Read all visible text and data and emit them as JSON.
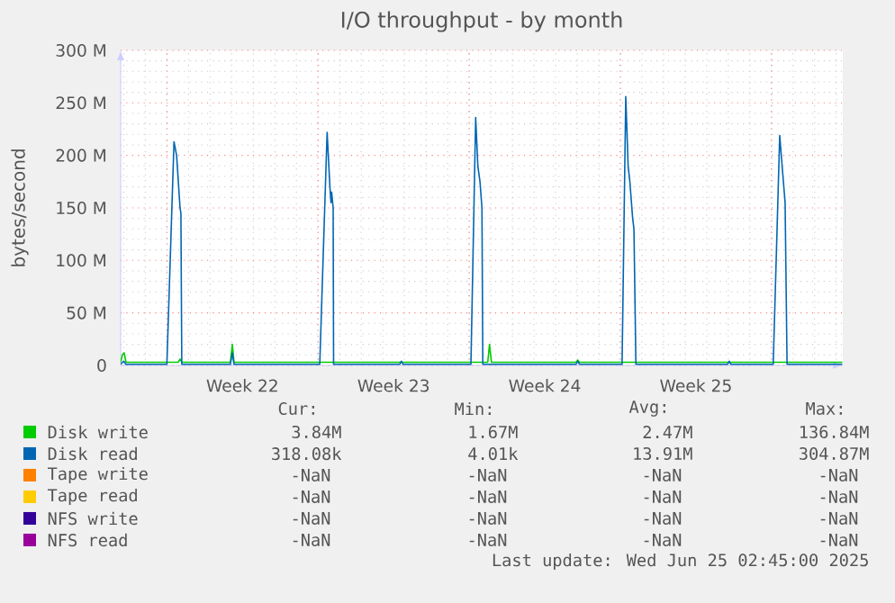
{
  "chart_data": {
    "type": "line",
    "title": "I/O throughput - by month",
    "ylabel": "bytes/second",
    "xlim": [
      "2025-05-23T20:38",
      "2025-06-26T07:12"
    ],
    "xticks": [
      {
        "value": "2025-05-26",
        "label": null
      },
      {
        "value": "2025-05-29T12:00",
        "label": "Week 22"
      },
      {
        "value": "2025-06-02",
        "label": null
      },
      {
        "value": "2025-06-05T12:00",
        "label": "Week 23"
      },
      {
        "value": "2025-06-09",
        "label": null
      },
      {
        "value": "2025-06-12T12:00",
        "label": "Week 24"
      },
      {
        "value": "2025-06-16",
        "label": null
      },
      {
        "value": "2025-06-19T12:00",
        "label": "Week 25"
      },
      {
        "value": "2025-06-23",
        "label": null
      }
    ],
    "ylim": [
      0,
      300000000
    ],
    "yticks": [
      {
        "value": 0,
        "label": "0"
      },
      {
        "value": 50000000,
        "label": "50 M"
      },
      {
        "value": 100000000,
        "label": "100 M"
      },
      {
        "value": 150000000,
        "label": "150 M"
      },
      {
        "value": 200000000,
        "label": "200 M"
      },
      {
        "value": 250000000,
        "label": "250 M"
      },
      {
        "value": 300000000,
        "label": "300 M"
      }
    ],
    "grid": true,
    "legend": "bottom",
    "series": [
      {
        "name": "Disk write",
        "color": "#00cc00",
        "x": [
          "2025-05-23T20:38",
          "2025-05-23T22:34",
          "2025-05-24T00:29",
          "2025-05-24T02:38",
          "2025-05-26T12:43",
          "2025-05-26T14:38",
          "2025-05-26T16:34",
          "2025-05-28T22:34",
          "2025-05-29T00:43",
          "2025-05-29T02:38",
          "2025-06-09T20:38",
          "2025-06-09T22:34",
          "2025-06-10T00:43",
          "2025-06-13T22:34",
          "2025-06-14T00:43",
          "2025-06-14T02:38",
          "2025-06-26T06:43"
        ],
        "values": [
          3000000,
          10000000,
          12000000,
          3000000,
          3000000,
          6000000,
          3000000,
          3000000,
          20000000,
          3000000,
          3000000,
          20000000,
          3000000,
          3000000,
          5000000,
          3000000,
          3000000
        ]
      },
      {
        "name": "Disk read",
        "color": "#0066b3",
        "x": [
          "2025-05-23T20:38",
          "2025-05-24T00:00",
          "2025-05-24T02:24",
          "2025-05-26T00:00",
          "2025-05-26T07:55",
          "2025-05-26T10:48",
          "2025-05-26T14:38",
          "2025-05-26T15:36",
          "2025-05-26T16:34",
          "2025-05-28T22:34",
          "2025-05-29T00:43",
          "2025-05-29T02:38",
          "2025-06-02T01:55",
          "2025-06-02T10:05",
          "2025-06-02T13:12",
          "2025-06-02T14:24",
          "2025-06-02T15:07",
          "2025-06-02T16:48",
          "2025-06-02T17:17",
          "2025-06-05T18:43",
          "2025-06-05T20:38",
          "2025-06-05T22:34",
          "2025-06-09T01:55",
          "2025-06-09T07:12",
          "2025-06-09T09:36",
          "2025-06-09T12:00",
          "2025-06-09T14:10",
          "2025-06-09T15:07",
          "2025-06-13T22:34",
          "2025-06-14T00:43",
          "2025-06-14T02:38",
          "2025-06-16T01:55",
          "2025-06-16T06:00",
          "2025-06-16T08:38",
          "2025-06-16T10:34",
          "2025-06-16T13:41",
          "2025-06-16T15:07",
          "2025-06-16T17:17",
          "2025-06-20T23:02",
          "2025-06-21T00:58",
          "2025-06-21T02:53",
          "2025-06-23T01:55",
          "2025-06-23T09:07",
          "2025-06-23T12:43",
          "2025-06-23T15:07",
          "2025-06-23T17:17",
          "2025-06-26T06:43"
        ],
        "values": [
          1000000,
          4000000,
          1000000,
          1000000,
          213000000,
          200000000,
          150000000,
          145000000,
          1000000,
          1000000,
          12000000,
          1000000,
          1000000,
          222000000,
          170000000,
          155000000,
          165000000,
          150000000,
          1000000,
          1000000,
          4000000,
          1000000,
          1000000,
          236000000,
          190000000,
          175000000,
          150000000,
          1000000,
          1000000,
          4000000,
          1000000,
          1000000,
          256000000,
          190000000,
          175000000,
          140000000,
          130000000,
          1000000,
          1000000,
          4000000,
          1000000,
          1000000,
          219000000,
          180000000,
          155000000,
          1000000,
          1000000
        ]
      },
      {
        "name": "Tape write",
        "color": "#ff8000"
      },
      {
        "name": "Tape read",
        "color": "#ffcc00"
      },
      {
        "name": "NFS write",
        "color": "#330099"
      },
      {
        "name": "NFS read",
        "color": "#990099"
      }
    ],
    "annotations": [
      "Cur:",
      "Min:",
      "Avg:",
      "Max:",
      "3.84M",
      "1.67M",
      "2.47M",
      "136.84M",
      "318.08k",
      "4.01k",
      "13.91M",
      "304.87M",
      "-NaN",
      "-NaN",
      "-NaN",
      "-NaN",
      "-NaN",
      "-NaN",
      "-NaN",
      "-NaN",
      "-NaN",
      "-NaN",
      "-NaN",
      "-NaN",
      "-NaN",
      "-NaN",
      "-NaN",
      "-NaN",
      "Last update: Wed Jun 25 02:45:00 2025"
    ]
  }
}
